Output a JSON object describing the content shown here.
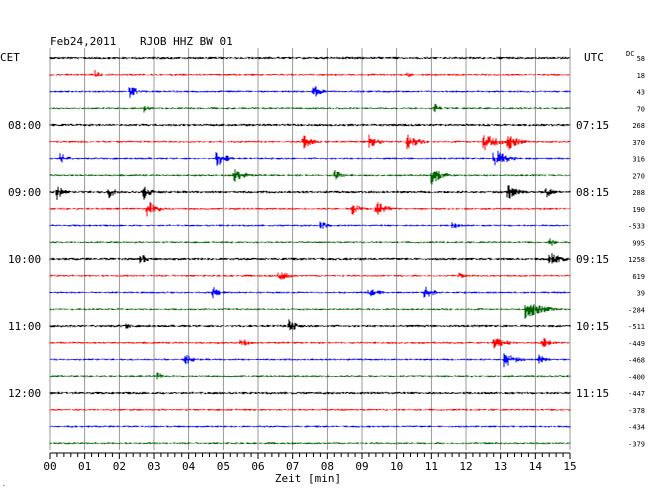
{
  "header": {
    "date": "Feb24,2011",
    "station": "RJOB HHZ BW 01",
    "left_tz": "CET",
    "right_tz": "UTC",
    "dc_label": "DC"
  },
  "chart_data": {
    "type": "line",
    "title": "Feb24,2011   RJOB HHZ BW 01",
    "xlabel": "Zeit [min]",
    "xlim": [
      0,
      15
    ],
    "x_ticks": [
      "00",
      "01",
      "02",
      "03",
      "04",
      "05",
      "06",
      "07",
      "08",
      "09",
      "10",
      "11",
      "12",
      "13",
      "14",
      "15"
    ],
    "grid": true,
    "left_time_labels": [
      {
        "row": 4,
        "text": "08:00"
      },
      {
        "row": 8,
        "text": "09:00"
      },
      {
        "row": 12,
        "text": "10:00"
      },
      {
        "row": 16,
        "text": "11:00"
      },
      {
        "row": 20,
        "text": "12:00"
      }
    ],
    "right_time_labels": [
      {
        "row": 4,
        "text": "07:15"
      },
      {
        "row": 8,
        "text": "08:15"
      },
      {
        "row": 12,
        "text": "09:15"
      },
      {
        "row": 16,
        "text": "10:15"
      },
      {
        "row": 20,
        "text": "11:15"
      }
    ],
    "trace_colors": [
      "#000000",
      "#ff0000",
      "#0000ff",
      "#006400"
    ],
    "dc_offsets": [
      "58",
      "18",
      "43",
      "70",
      "268",
      "370",
      "316",
      "270",
      "288",
      "190",
      "-533",
      "995",
      "1258",
      "619",
      "39",
      "-284",
      "-511",
      "-449",
      "-468",
      "-400",
      "-447",
      "-378",
      "-434",
      "-379"
    ],
    "events": [
      {
        "row": 1,
        "t": 1.3,
        "a": 5,
        "d": 0.15
      },
      {
        "row": 1,
        "t": 10.3,
        "a": 4,
        "d": 0.15
      },
      {
        "row": 2,
        "t": 2.3,
        "a": 8,
        "d": 0.2
      },
      {
        "row": 2,
        "t": 7.6,
        "a": 8,
        "d": 0.2
      },
      {
        "row": 3,
        "t": 2.7,
        "a": 5,
        "d": 0.15
      },
      {
        "row": 3,
        "t": 11.1,
        "a": 5,
        "d": 0.15
      },
      {
        "row": 5,
        "t": 7.3,
        "a": 8,
        "d": 0.25
      },
      {
        "row": 5,
        "t": 9.2,
        "a": 8,
        "d": 0.25
      },
      {
        "row": 5,
        "t": 10.3,
        "a": 9,
        "d": 0.3
      },
      {
        "row": 5,
        "t": 12.5,
        "a": 10,
        "d": 0.4
      },
      {
        "row": 5,
        "t": 13.2,
        "a": 9,
        "d": 0.3
      },
      {
        "row": 6,
        "t": 0.3,
        "a": 7,
        "d": 0.2
      },
      {
        "row": 6,
        "t": 4.8,
        "a": 9,
        "d": 0.3
      },
      {
        "row": 6,
        "t": 12.8,
        "a": 11,
        "d": 0.35
      },
      {
        "row": 7,
        "t": 5.3,
        "a": 8,
        "d": 0.3
      },
      {
        "row": 7,
        "t": 8.2,
        "a": 7,
        "d": 0.2
      },
      {
        "row": 7,
        "t": 11.0,
        "a": 10,
        "d": 0.3
      },
      {
        "row": 8,
        "t": 0.2,
        "a": 8,
        "d": 0.2
      },
      {
        "row": 8,
        "t": 1.7,
        "a": 7,
        "d": 0.2
      },
      {
        "row": 8,
        "t": 2.7,
        "a": 9,
        "d": 0.25
      },
      {
        "row": 8,
        "t": 13.2,
        "a": 9,
        "d": 0.3
      },
      {
        "row": 8,
        "t": 14.3,
        "a": 7,
        "d": 0.2
      },
      {
        "row": 9,
        "t": 2.8,
        "a": 9,
        "d": 0.3
      },
      {
        "row": 9,
        "t": 8.7,
        "a": 8,
        "d": 0.25
      },
      {
        "row": 9,
        "t": 9.4,
        "a": 9,
        "d": 0.3
      },
      {
        "row": 10,
        "t": 7.8,
        "a": 6,
        "d": 0.2
      },
      {
        "row": 10,
        "t": 11.6,
        "a": 5,
        "d": 0.2
      },
      {
        "row": 11,
        "t": 14.4,
        "a": 7,
        "d": 0.15
      },
      {
        "row": 12,
        "t": 2.6,
        "a": 7,
        "d": 0.2
      },
      {
        "row": 12,
        "t": 14.4,
        "a": 8,
        "d": 0.35
      },
      {
        "row": 13,
        "t": 6.6,
        "a": 7,
        "d": 0.25
      },
      {
        "row": 13,
        "t": 11.8,
        "a": 4,
        "d": 0.15
      },
      {
        "row": 14,
        "t": 4.7,
        "a": 7,
        "d": 0.2
      },
      {
        "row": 14,
        "t": 9.2,
        "a": 6,
        "d": 0.3
      },
      {
        "row": 14,
        "t": 10.8,
        "a": 7,
        "d": 0.3
      },
      {
        "row": 15,
        "t": 13.7,
        "a": 10,
        "d": 0.5
      },
      {
        "row": 16,
        "t": 6.9,
        "a": 8,
        "d": 0.2
      },
      {
        "row": 16,
        "t": 2.2,
        "a": 4,
        "d": 0.15
      },
      {
        "row": 17,
        "t": 5.5,
        "a": 6,
        "d": 0.2
      },
      {
        "row": 17,
        "t": 12.8,
        "a": 7,
        "d": 0.35
      },
      {
        "row": 17,
        "t": 14.2,
        "a": 6,
        "d": 0.25
      },
      {
        "row": 18,
        "t": 3.9,
        "a": 6,
        "d": 0.25
      },
      {
        "row": 18,
        "t": 13.1,
        "a": 9,
        "d": 0.3
      },
      {
        "row": 18,
        "t": 14.1,
        "a": 6,
        "d": 0.2
      },
      {
        "row": 19,
        "t": 3.1,
        "a": 5,
        "d": 0.15
      }
    ]
  }
}
